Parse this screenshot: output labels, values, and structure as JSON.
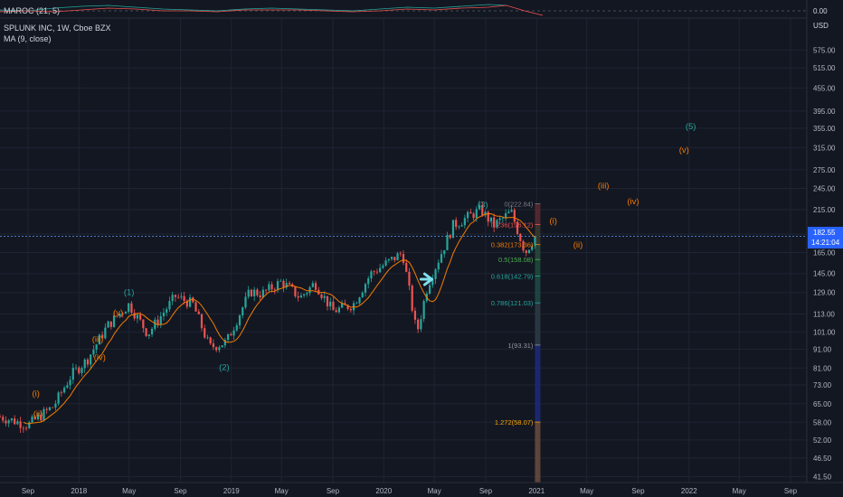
{
  "indicator_pane": {
    "label": "MAROC (21, 5)",
    "zero_label": "0.00"
  },
  "header": {
    "title": "SPLUNK INC, 1W, Cboe BZX",
    "ma_label": "MA (9, close)",
    "currency": "USD"
  },
  "price_scale": {
    "ticks": [
      "575.00",
      "515.00",
      "455.00",
      "395.00",
      "355.00",
      "315.00",
      "275.00",
      "245.00",
      "215.00",
      "185.00",
      "165.00",
      "145.00",
      "129.00",
      "113.00",
      "101.00",
      "91.00",
      "81.00",
      "73.00",
      "65.00",
      "58.00",
      "52.00",
      "46.50",
      "41.50"
    ],
    "last_price": "182.55",
    "countdown": "14:21:04",
    "last_price_color": "#5b9cf6"
  },
  "time_scale": {
    "ticks": [
      "Sep",
      "2018",
      "May",
      "Sep",
      "2019",
      "May",
      "Sep",
      "2020",
      "May",
      "Sep",
      "2021",
      "May",
      "Sep",
      "2022",
      "May",
      "Sep"
    ]
  },
  "chart_data": {
    "type": "candlestick",
    "title": "SPLUNK INC, 1W, Cboe BZX",
    "scale": "log",
    "ylim": [
      40,
      700
    ],
    "xlim": [
      "2017-06-26",
      "2022-10-10"
    ],
    "grid": true,
    "series_close": [
      {
        "date": "2017-06-26",
        "close": 60
      },
      {
        "date": "2017-09-01",
        "close": 57
      },
      {
        "date": "2017-11-01",
        "close": 64
      },
      {
        "date": "2017-12-15",
        "close": 78
      },
      {
        "date": "2018-01-20",
        "close": 85
      },
      {
        "date": "2018-03-10",
        "close": 105
      },
      {
        "date": "2018-05-01",
        "close": 120
      },
      {
        "date": "2018-06-15",
        "close": 100
      },
      {
        "date": "2018-08-20",
        "close": 126
      },
      {
        "date": "2018-10-01",
        "close": 120
      },
      {
        "date": "2018-11-10",
        "close": 92
      },
      {
        "date": "2018-12-20",
        "close": 95
      },
      {
        "date": "2019-02-15",
        "close": 130
      },
      {
        "date": "2019-03-15",
        "close": 128
      },
      {
        "date": "2019-05-01",
        "close": 138
      },
      {
        "date": "2019-06-15",
        "close": 125
      },
      {
        "date": "2019-07-20",
        "close": 137
      },
      {
        "date": "2019-09-01",
        "close": 115
      },
      {
        "date": "2019-10-20",
        "close": 120
      },
      {
        "date": "2019-12-01",
        "close": 145
      },
      {
        "date": "2020-02-15",
        "close": 165
      },
      {
        "date": "2020-03-20",
        "close": 100
      },
      {
        "date": "2020-04-15",
        "close": 135
      },
      {
        "date": "2020-06-15",
        "close": 195
      },
      {
        "date": "2020-08-20",
        "close": 215
      },
      {
        "date": "2020-09-20",
        "close": 195
      },
      {
        "date": "2020-11-01",
        "close": 212
      },
      {
        "date": "2020-12-05",
        "close": 165
      },
      {
        "date": "2020-12-28",
        "close": 182.55
      }
    ],
    "fibonacci": [
      {
        "level": "0",
        "value": 222.84
      },
      {
        "level": "0.236",
        "value": 196.12
      },
      {
        "level": "0.382",
        "value": 173.36
      },
      {
        "level": "0.5",
        "value": 158.08
      },
      {
        "level": "0.618",
        "value": 142.79
      },
      {
        "level": "0.786",
        "value": 121.03
      },
      {
        "level": "1",
        "value": 93.31
      },
      {
        "level": "1.272",
        "value": 58.07
      }
    ],
    "fib_text": [
      "0(222.84)",
      "0.236(196.12)",
      "0.382(173.36)",
      "0.5(158.08)",
      "0.618(142.79)",
      "0.786(121.03)",
      "1(93.31)",
      "1.272(58.07)"
    ],
    "wave_labels": [
      {
        "text": "(i)",
        "date": "2017-09-20",
        "price": 68,
        "color": "#f57c00"
      },
      {
        "text": "(ii)",
        "date": "2017-09-25",
        "price": 60,
        "color": "#f57c00"
      },
      {
        "text": "(iii)",
        "date": "2018-02-15",
        "price": 95,
        "color": "#f57c00"
      },
      {
        "text": "(iv)",
        "date": "2018-02-20",
        "price": 85,
        "color": "#f57c00"
      },
      {
        "text": "(v)",
        "date": "2018-04-05",
        "price": 112,
        "color": "#f57c00"
      },
      {
        "text": "(1)",
        "date": "2018-05-01",
        "price": 127,
        "color": "#26a69a"
      },
      {
        "text": "(2)",
        "date": "2018-12-15",
        "price": 80,
        "color": "#26a69a"
      },
      {
        "text": "(3)",
        "date": "2020-08-25",
        "price": 218,
        "color": "#26a69a"
      },
      {
        "text": "(i)",
        "date": "2021-02-10",
        "price": 197,
        "color": "#f57c00"
      },
      {
        "text": "(ii)",
        "date": "2021-04-10",
        "price": 170,
        "color": "#f57c00"
      },
      {
        "text": "(iii)",
        "date": "2021-06-10",
        "price": 245,
        "color": "#f57c00"
      },
      {
        "text": "(iv)",
        "date": "2021-08-20",
        "price": 222,
        "color": "#f57c00"
      },
      {
        "text": "(v)",
        "date": "2021-12-20",
        "price": 305,
        "color": "#f57c00"
      },
      {
        "text": "(5)",
        "date": "2022-01-05",
        "price": 353,
        "color": "#26a69a"
      }
    ],
    "colors": {
      "up": "#26a69a",
      "down": "#ef5350",
      "ma": "#f57c00",
      "grid": "#1f2433",
      "text": "#b2b5be"
    }
  }
}
